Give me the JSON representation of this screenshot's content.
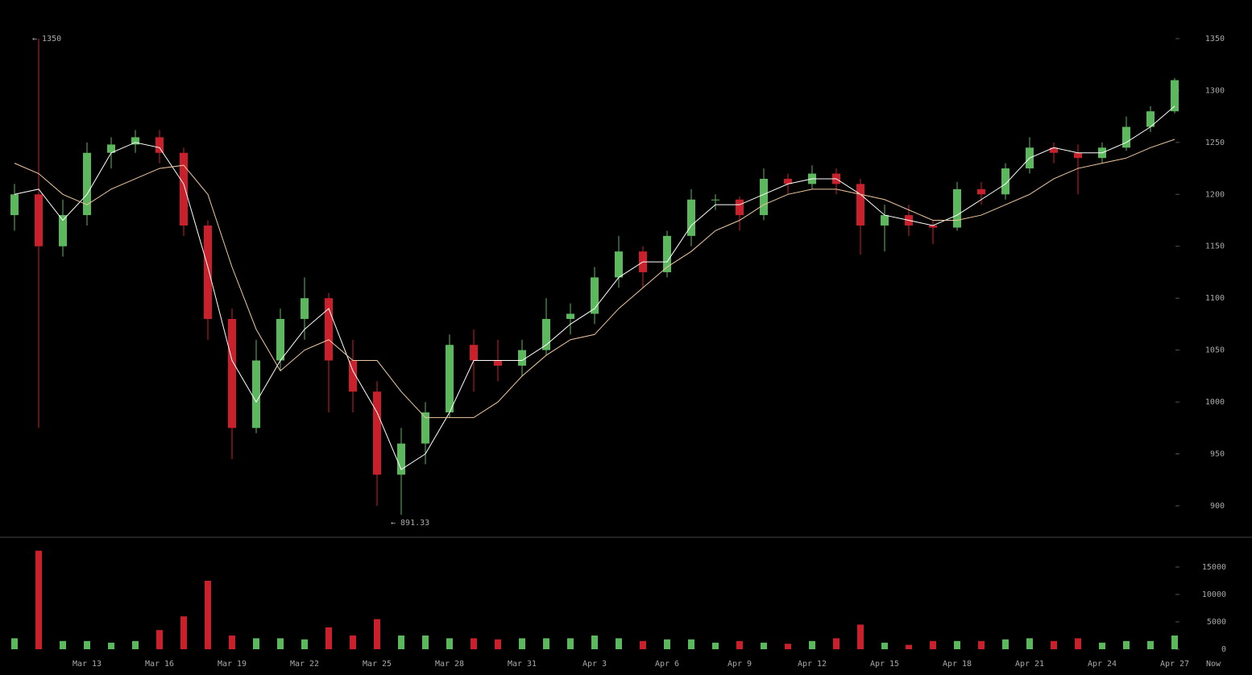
{
  "chart_data": {
    "type": "candlestick",
    "categories": [
      null,
      null,
      null,
      "Mar 13",
      null,
      null,
      "Mar 16",
      null,
      null,
      "Mar 19",
      null,
      null,
      "Mar 22",
      null,
      null,
      "Mar 25",
      null,
      null,
      "Mar 28",
      null,
      null,
      "Mar 31",
      null,
      null,
      "Apr 3",
      null,
      null,
      "Apr 6",
      null,
      null,
      "Apr 9",
      null,
      null,
      "Apr 12",
      null,
      null,
      "Apr 15",
      null,
      null,
      "Apr 18",
      null,
      null,
      "Apr 21",
      null,
      null,
      "Apr 24",
      null,
      null,
      "Apr 27"
    ],
    "open": [
      1180,
      1200,
      1150,
      1180,
      1240,
      1248,
      1255,
      1240,
      1170,
      1080,
      975,
      1040,
      1080,
      1100,
      1040,
      1010,
      930,
      960,
      990,
      1055,
      1040,
      1035,
      1050,
      1080,
      1085,
      1120,
      1145,
      1125,
      1160,
      1195,
      1195,
      1180,
      1215,
      1210,
      1220,
      1210,
      1170,
      1180,
      1170,
      1168,
      1205,
      1200,
      1225,
      1245,
      1240,
      1235,
      1245,
      1265,
      1280
    ],
    "high": [
      1210,
      1350,
      1195,
      1250,
      1255,
      1262,
      1262,
      1245,
      1175,
      1090,
      1060,
      1090,
      1120,
      1105,
      1060,
      1020,
      975,
      1000,
      1065,
      1070,
      1060,
      1060,
      1100,
      1095,
      1130,
      1160,
      1150,
      1165,
      1205,
      1200,
      1198,
      1225,
      1220,
      1228,
      1225,
      1215,
      1190,
      1190,
      1175,
      1212,
      1212,
      1230,
      1255,
      1250,
      1248,
      1250,
      1275,
      1285,
      1312
    ],
    "low": [
      1165,
      975,
      1140,
      1170,
      1225,
      1240,
      1230,
      1160,
      1060,
      945,
      970,
      1030,
      1060,
      990,
      990,
      900,
      891.33,
      940,
      985,
      1010,
      1020,
      1025,
      1045,
      1065,
      1075,
      1110,
      1110,
      1120,
      1150,
      1185,
      1165,
      1175,
      1200,
      1205,
      1200,
      1142,
      1145,
      1160,
      1152,
      1165,
      1190,
      1195,
      1220,
      1230,
      1200,
      1230,
      1242,
      1260,
      1278
    ],
    "close": [
      1200,
      1150,
      1180,
      1240,
      1248,
      1255,
      1240,
      1170,
      1080,
      975,
      1040,
      1080,
      1100,
      1040,
      1010,
      930,
      960,
      990,
      1055,
      1040,
      1035,
      1050,
      1080,
      1085,
      1120,
      1145,
      1125,
      1160,
      1195,
      1195,
      1180,
      1215,
      1210,
      1220,
      1210,
      1170,
      1180,
      1170,
      1168,
      1205,
      1200,
      1225,
      1245,
      1240,
      1235,
      1245,
      1265,
      1280,
      1310
    ],
    "up_color": "#5cb85c",
    "down_color": "#c9202c",
    "moving_averages": [
      {
        "color": "#ffffff",
        "values": [
          1200,
          1205,
          1175,
          1200,
          1240,
          1250,
          1245,
          1210,
          1130,
          1040,
          1000,
          1040,
          1070,
          1090,
          1030,
          990,
          935,
          950,
          990,
          1040,
          1040,
          1040,
          1055,
          1075,
          1090,
          1120,
          1135,
          1135,
          1170,
          1190,
          1190,
          1200,
          1210,
          1215,
          1215,
          1200,
          1180,
          1175,
          1170,
          1180,
          1195,
          1210,
          1235,
          1245,
          1240,
          1240,
          1250,
          1265,
          1285
        ]
      },
      {
        "color": "#f0c8a0",
        "values": [
          1230,
          1220,
          1200,
          1190,
          1205,
          1215,
          1225,
          1228,
          1200,
          1130,
          1070,
          1030,
          1050,
          1060,
          1040,
          1040,
          1010,
          985,
          985,
          985,
          1000,
          1025,
          1045,
          1060,
          1065,
          1090,
          1110,
          1130,
          1145,
          1165,
          1175,
          1190,
          1200,
          1205,
          1205,
          1200,
          1195,
          1185,
          1175,
          1175,
          1180,
          1190,
          1200,
          1215,
          1225,
          1230,
          1235,
          1245,
          1253
        ]
      }
    ],
    "ylim": [
      870.5,
      1387.2
    ],
    "yticks": [
      900,
      950,
      1000,
      1050,
      1100,
      1150,
      1200,
      1250,
      1300,
      1350
    ],
    "volume": {
      "values": [
        2000,
        18000,
        1500,
        1500,
        1200,
        1500,
        3500,
        6000,
        12500,
        2500,
        2000,
        2000,
        1800,
        4000,
        2500,
        5500,
        2500,
        2500,
        2000,
        2000,
        1800,
        2000,
        2000,
        2000,
        2500,
        2000,
        1500,
        1800,
        1800,
        1200,
        1500,
        1200,
        1000,
        1500,
        2000,
        4500,
        1200,
        800,
        1500,
        1500,
        1500,
        1800,
        2000,
        1500,
        2000,
        1200,
        1500,
        1500,
        2500
      ],
      "ylim": [
        0,
        20294
      ],
      "yticks": [
        0,
        5000,
        10000,
        15000
      ]
    },
    "annotations": [
      "← 1350",
      "← 891.33"
    ],
    "now_label": "Now"
  }
}
